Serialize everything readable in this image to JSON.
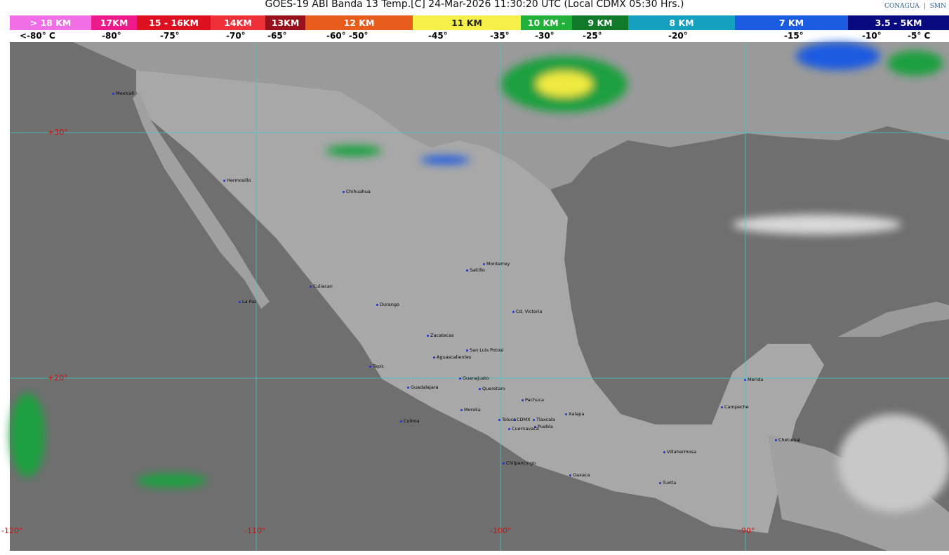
{
  "title": "GOES-19 ABI Banda 13 Temp.[C] 24-Mar-2026 11:30:20 UTC (Local CDMX  05:30 Hrs.)",
  "logos": [
    "CONAGUA",
    "SMN"
  ],
  "legend": [
    {
      "label": "> 18 KM",
      "color": "#f06ee6",
      "w": 116
    },
    {
      "label": "17KM",
      "color": "#ee1a8c",
      "w": 65
    },
    {
      "label": "15 - 16KM",
      "color": "#dd1020",
      "w": 105
    },
    {
      "label": "14KM",
      "color": "#ee3038",
      "w": 78
    },
    {
      "label": "13KM",
      "color": "#98101c",
      "w": 57
    },
    {
      "label": "12 KM",
      "color": "#e85c1c",
      "w": 153
    },
    {
      "label": "11 KM",
      "color": "#f6f04a",
      "w": 154,
      "dark": true
    },
    {
      "label": "10 KM -",
      "color": "#22b03a",
      "w": 73
    },
    {
      "label": "9 KM",
      "color": "#107a2a",
      "w": 80
    },
    {
      "label": "8 KM",
      "color": "#14a0be",
      "w": 152
    },
    {
      "label": "7 KM",
      "color": "#1a5ce0",
      "w": 161
    },
    {
      "label": "3.5 - 5KM",
      "color": "#0a0a80",
      "w": 144
    }
  ],
  "temps": [
    [
      "<-80° C",
      28
    ],
    [
      "-80°",
      145
    ],
    [
      "-75°",
      228
    ],
    [
      "-70°",
      322
    ],
    [
      "-65°",
      381
    ],
    [
      "-60° -50°",
      465
    ],
    [
      "-45°",
      610
    ],
    [
      "-35°",
      698
    ],
    [
      "-30°",
      762
    ],
    [
      "-25°",
      830
    ],
    [
      "-20°",
      952
    ],
    [
      "-15°",
      1117
    ],
    [
      "-10°",
      1228
    ],
    [
      "-5°  C",
      1293
    ]
  ],
  "grid": {
    "lat": [
      "+30°",
      "+20°"
    ],
    "lon": [
      "-120°",
      "-110°",
      "-100°",
      "-90°"
    ]
  },
  "cities": [
    [
      "Mexicali",
      160,
      33
    ],
    [
      "Hermosillo",
      318,
      157
    ],
    [
      "Chihuahua",
      488,
      173
    ],
    [
      "Saltillo",
      664,
      285
    ],
    [
      "Monterrey",
      688,
      276
    ],
    [
      "Culiacan",
      441,
      308
    ],
    [
      "La Paz",
      340,
      330
    ],
    [
      "Durango",
      536,
      334
    ],
    [
      "Cd. Victoria",
      730,
      344
    ],
    [
      "Zacatecas",
      608,
      378
    ],
    [
      "San Luis Potosi",
      664,
      399
    ],
    [
      "Aguascalientes",
      617,
      409
    ],
    [
      "Tepic",
      526,
      422
    ],
    [
      "Guanajuato",
      654,
      439
    ],
    [
      "Guadalajara",
      580,
      452
    ],
    [
      "Queretaro",
      682,
      454
    ],
    [
      "Pachuca",
      743,
      470
    ],
    [
      "Xalapa",
      805,
      490
    ],
    [
      "Morelia",
      656,
      484
    ],
    [
      "Colima",
      570,
      500
    ],
    [
      "Toluca",
      710,
      498
    ],
    [
      "CDMX",
      731,
      498
    ],
    [
      "Tlaxcala",
      759,
      498
    ],
    [
      "Puebla",
      761,
      508
    ],
    [
      "Cuernavaca",
      724,
      511
    ],
    [
      "Chilpancingo",
      716,
      560
    ],
    [
      "Oaxaca",
      811,
      577
    ],
    [
      "Villahermosa",
      945,
      544
    ],
    [
      "Tuxtla",
      939,
      588
    ],
    [
      "Campeche",
      1027,
      480
    ],
    [
      "Merida",
      1060,
      441
    ],
    [
      "Chetumal",
      1104,
      527
    ]
  ]
}
